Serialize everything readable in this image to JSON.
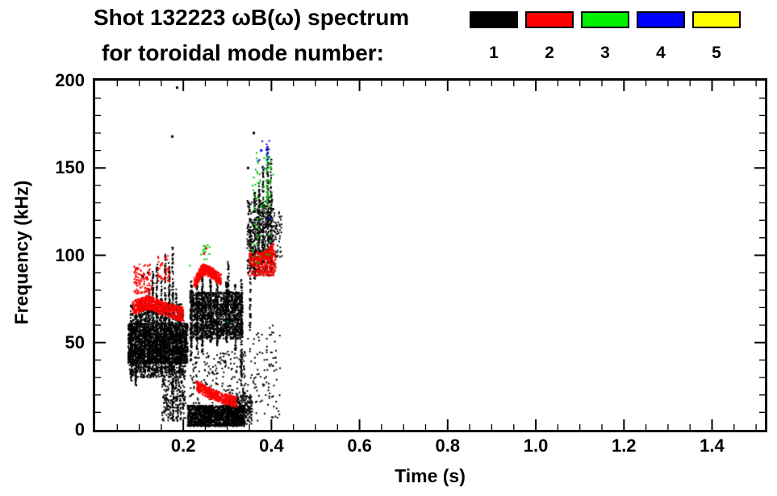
{
  "title": {
    "line1": "Shot 132223 ωB(ω) spectrum",
    "line2": "for toroidal mode number:"
  },
  "legend": {
    "entries": [
      {
        "label": "1",
        "color": "#000000"
      },
      {
        "label": "2",
        "color": "#ff0000"
      },
      {
        "label": "3",
        "color": "#00ee00"
      },
      {
        "label": "4",
        "color": "#0000ff"
      },
      {
        "label": "5",
        "color": "#ffff00"
      }
    ]
  },
  "chart_data": {
    "type": "scatter",
    "title": "Shot 132223 ωB(ω) spectrum for toroidal mode number: 1 2 3 4 5",
    "xlabel": "Time (s)",
    "ylabel": "Frequency (kHz)",
    "xlim": [
      0.0,
      1.52
    ],
    "ylim": [
      0,
      200
    ],
    "x_ticks": [
      0.2,
      0.4,
      0.6,
      0.8,
      1.0,
      1.2,
      1.4
    ],
    "x_tick_labels": [
      "0.2",
      "0.4",
      "0.6",
      "0.8",
      "1.0",
      "1.2",
      "1.4"
    ],
    "y_ticks": [
      0,
      50,
      100,
      150,
      200
    ],
    "y_tick_labels": [
      "0",
      "50",
      "100",
      "150",
      "200"
    ],
    "x_minor_step": 0.05,
    "y_minor_step": 10,
    "grid": false,
    "legend_position": "top-right",
    "series": [
      {
        "name": "n=1",
        "color": "#000000",
        "clusters": [
          {
            "kind": "box",
            "t": [
              0.075,
              0.21
            ],
            "f": [
              38,
              61
            ],
            "n": 2300
          },
          {
            "kind": "box",
            "t": [
              0.078,
              0.205
            ],
            "f": [
              30,
              40
            ],
            "n": 380
          },
          {
            "kind": "box",
            "t": [
              0.08,
              0.2
            ],
            "f": [
              61,
              72
            ],
            "n": 320
          },
          {
            "kind": "vlines",
            "lines": [
              [
                0.082,
                28,
                62,
                70
              ],
              [
                0.092,
                25,
                66,
                80
              ],
              [
                0.103,
                34,
                76,
                85
              ],
              [
                0.112,
                30,
                70,
                75
              ],
              [
                0.122,
                34,
                82,
                85
              ],
              [
                0.131,
                30,
                91,
                100
              ],
              [
                0.14,
                34,
                96,
                100
              ],
              [
                0.15,
                30,
                86,
                90
              ],
              [
                0.159,
                34,
                101,
                100
              ],
              [
                0.168,
                30,
                96,
                95
              ],
              [
                0.176,
                5,
                106,
                120
              ],
              [
                0.184,
                24,
                81,
                85
              ],
              [
                0.192,
                30,
                71,
                75
              ]
            ]
          },
          {
            "kind": "box",
            "t": [
              0.152,
              0.205
            ],
            "f": [
              5,
              30
            ],
            "n": 240
          },
          {
            "kind": "box",
            "t": [
              0.215,
              0.335
            ],
            "f": [
              52,
              79
            ],
            "n": 1500
          },
          {
            "kind": "vlines",
            "lines": [
              [
                0.218,
                40,
                86,
                85
              ],
              [
                0.231,
                46,
                84,
                75
              ],
              [
                0.243,
                44,
                89,
                95
              ],
              [
                0.262,
                50,
                86,
                75
              ],
              [
                0.277,
                48,
                87,
                85
              ],
              [
                0.298,
                50,
                85,
                75
              ],
              [
                0.302,
                55,
                97,
                60
              ],
              [
                0.318,
                45,
                83,
                75
              ],
              [
                0.332,
                25,
                86,
                95
              ]
            ]
          },
          {
            "kind": "box",
            "t": [
              0.21,
              0.34
            ],
            "f": [
              2,
              14
            ],
            "n": 1500
          },
          {
            "kind": "box",
            "t": [
              0.3,
              0.358
            ],
            "f": [
              3,
              20
            ],
            "n": 260
          },
          {
            "kind": "box",
            "t": [
              0.215,
              0.34
            ],
            "f": [
              15,
              45
            ],
            "n": 200
          },
          {
            "kind": "box",
            "t": [
              0.345,
              0.405
            ],
            "f": [
              88,
              132
            ],
            "n": 520
          },
          {
            "kind": "vlines",
            "lines": [
              [
                0.352,
                58,
                116,
                60
              ],
              [
                0.362,
                85,
                136,
                70
              ],
              [
                0.372,
                90,
                141,
                70
              ],
              [
                0.381,
                95,
                151,
                70
              ],
              [
                0.392,
                95,
                163,
                80
              ],
              [
                0.399,
                90,
                155,
                60
              ]
            ]
          },
          {
            "kind": "box",
            "t": [
              0.335,
              0.42
            ],
            "f": [
              5,
              60
            ],
            "n": 110
          },
          {
            "kind": "box",
            "t": [
              0.405,
              0.425
            ],
            "f": [
              95,
              125
            ],
            "n": 55
          },
          {
            "kind": "points",
            "size": 3,
            "pts": [
              [
                0.175,
                168
              ],
              [
                0.186,
                196
              ],
              [
                0.347,
                150
              ],
              [
                0.36,
                170
              ],
              [
                0.12,
                90
              ],
              [
                0.108,
                88
              ]
            ]
          }
        ]
      },
      {
        "name": "n=2",
        "color": "#ff0000",
        "clusters": [
          {
            "kind": "curve",
            "w": 4,
            "n": 620,
            "pts": [
              [
                0.085,
                70
              ],
              [
                0.12,
                73
              ],
              [
                0.16,
                69
              ],
              [
                0.2,
                66
              ]
            ]
          },
          {
            "kind": "box",
            "t": [
              0.088,
              0.13
            ],
            "f": [
              78,
              95
            ],
            "n": 110
          },
          {
            "kind": "box",
            "t": [
              0.14,
              0.17
            ],
            "f": [
              85,
              100
            ],
            "n": 45
          },
          {
            "kind": "curve",
            "w": 3,
            "n": 480,
            "pts": [
              [
                0.225,
                84
              ],
              [
                0.245,
                92
              ],
              [
                0.265,
                90
              ],
              [
                0.285,
                86
              ]
            ]
          },
          {
            "kind": "curve",
            "w": 3,
            "n": 460,
            "pts": [
              [
                0.23,
                25
              ],
              [
                0.26,
                21
              ],
              [
                0.29,
                18
              ],
              [
                0.32,
                16
              ]
            ]
          },
          {
            "kind": "box",
            "t": [
              0.35,
              0.41
            ],
            "f": [
              88,
              102
            ],
            "n": 260
          },
          {
            "kind": "curve",
            "w": 2.5,
            "n": 140,
            "pts": [
              [
                0.36,
                96
              ],
              [
                0.385,
                100
              ],
              [
                0.405,
                104
              ]
            ]
          },
          {
            "kind": "points",
            "size": 3,
            "pts": [
              [
                0.247,
                101
              ],
              [
                0.252,
                104
              ]
            ]
          }
        ]
      },
      {
        "name": "n=3",
        "color": "#00bb00",
        "clusters": [
          {
            "kind": "box",
            "t": [
              0.355,
              0.405
            ],
            "f": [
              95,
              160
            ],
            "n": 80
          },
          {
            "kind": "vlines",
            "lines": [
              [
                0.39,
                128,
                158,
                25
              ]
            ]
          },
          {
            "kind": "box",
            "t": [
              0.24,
              0.262
            ],
            "f": [
              97,
              107
            ],
            "n": 14
          },
          {
            "kind": "points",
            "size": 2,
            "pts": [
              [
                0.3,
                62
              ],
              [
                0.215,
                94
              ]
            ]
          }
        ]
      },
      {
        "name": "n=4",
        "color": "#0000ff",
        "clusters": [
          {
            "kind": "box",
            "t": [
              0.37,
              0.4
            ],
            "f": [
              148,
              166
            ],
            "n": 14
          },
          {
            "kind": "points",
            "size": 3,
            "pts": [
              [
                0.396,
                121
              ],
              [
                0.377,
                160
              ]
            ]
          }
        ]
      },
      {
        "name": "n=5",
        "color": "#ffff00",
        "clusters": []
      }
    ]
  }
}
